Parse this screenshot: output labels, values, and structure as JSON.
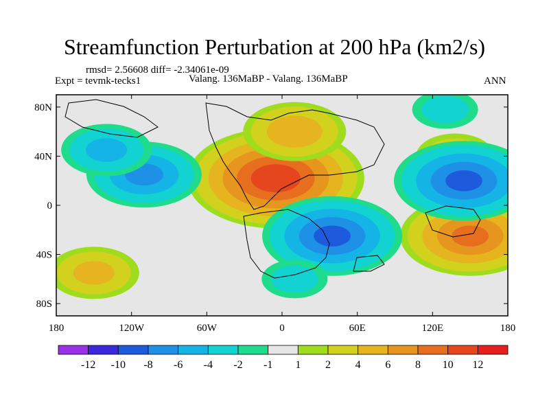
{
  "chart_data": {
    "type": "heatmap",
    "title": "Streamfunction Perturbation at 200 hPa (km2/s)",
    "stats_label": "rmsd= 2.56608 diff= -2.34061e-09",
    "experiment_label": "Expt = tevmk-tecks1",
    "comparison_label": "Valang. 136MaBP - Valang. 136MaBP",
    "period_label": "ANN",
    "units": "km2/s",
    "x_range": [
      -180,
      180
    ],
    "y_range": [
      -90,
      90
    ],
    "x_ticks": [
      {
        "value": -180,
        "label": "180"
      },
      {
        "value": -120,
        "label": "120W"
      },
      {
        "value": -60,
        "label": "60W"
      },
      {
        "value": 0,
        "label": "0"
      },
      {
        "value": 60,
        "label": "60E"
      },
      {
        "value": 120,
        "label": "120E"
      },
      {
        "value": 180,
        "label": "180"
      }
    ],
    "y_ticks": [
      {
        "value": 80,
        "label": "80N"
      },
      {
        "value": 40,
        "label": "40N"
      },
      {
        "value": 0,
        "label": "0"
      },
      {
        "value": -40,
        "label": "40S"
      },
      {
        "value": -80,
        "label": "80S"
      }
    ],
    "colorbar": {
      "labels": [
        "-12",
        "-10",
        "-8",
        "-6",
        "-4",
        "-2",
        "-1",
        "1",
        "2",
        "4",
        "6",
        "8",
        "10",
        "12"
      ],
      "colors": [
        "#9932e6",
        "#3c28dc",
        "#1e5adc",
        "#1e90e6",
        "#14b4e6",
        "#12d2d2",
        "#1edc8c",
        "#e6e6e6",
        "#a0dc1e",
        "#d2d21e",
        "#e6b41e",
        "#e6961e",
        "#e66e1e",
        "#e6461e",
        "#e61e1e"
      ]
    },
    "field_centers": [
      {
        "lon": -5,
        "lat": 22,
        "value": 11
      },
      {
        "lon": 10,
        "lat": 60,
        "value": 5
      },
      {
        "lon": 150,
        "lat": -25,
        "value": 8
      },
      {
        "lon": 138,
        "lat": 40,
        "value": 3
      },
      {
        "lon": -150,
        "lat": -55,
        "value": 4
      },
      {
        "lon": 40,
        "lat": -25,
        "value": -8
      },
      {
        "lon": 145,
        "lat": 20,
        "value": -8
      },
      {
        "lon": -110,
        "lat": 25,
        "value": -6
      },
      {
        "lon": -140,
        "lat": 45,
        "value": -4
      },
      {
        "lon": 10,
        "lat": -60,
        "value": -2
      },
      {
        "lon": 130,
        "lat": 78,
        "value": -2
      }
    ]
  }
}
